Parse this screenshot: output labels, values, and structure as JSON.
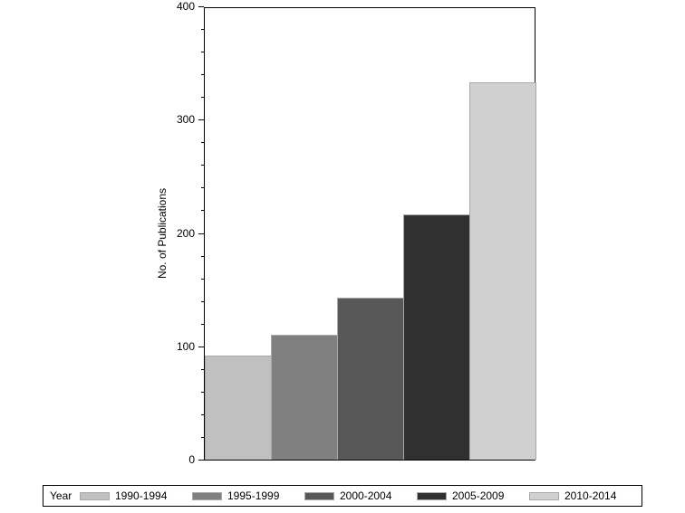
{
  "chart_data": {
    "type": "bar",
    "title": "",
    "xlabel": "",
    "ylabel": "No. of Publications",
    "ylim": [
      0,
      400
    ],
    "yticks": [
      0,
      100,
      200,
      300,
      400
    ],
    "grid": false,
    "legend_position": "bottom",
    "legend_title": "Year",
    "categories": [
      "1990-1994",
      "1995-1999",
      "2000-2004",
      "2005-2009",
      "2010-2014"
    ],
    "values": [
      92,
      110,
      143,
      216,
      333
    ],
    "colors": [
      "#c0c0c0",
      "#808080",
      "#585858",
      "#303030",
      "#d0d0d0"
    ]
  },
  "legend": {
    "title": "Year",
    "items": [
      {
        "label": "1990-1994",
        "color": "#c0c0c0"
      },
      {
        "label": "1995-1999",
        "color": "#808080"
      },
      {
        "label": "2000-2004",
        "color": "#585858"
      },
      {
        "label": "2005-2009",
        "color": "#303030"
      },
      {
        "label": "2010-2014",
        "color": "#d0d0d0"
      }
    ]
  },
  "axis": {
    "ylabel": "No. of Publications",
    "ticks": [
      "0",
      "100",
      "200",
      "300",
      "400"
    ]
  }
}
